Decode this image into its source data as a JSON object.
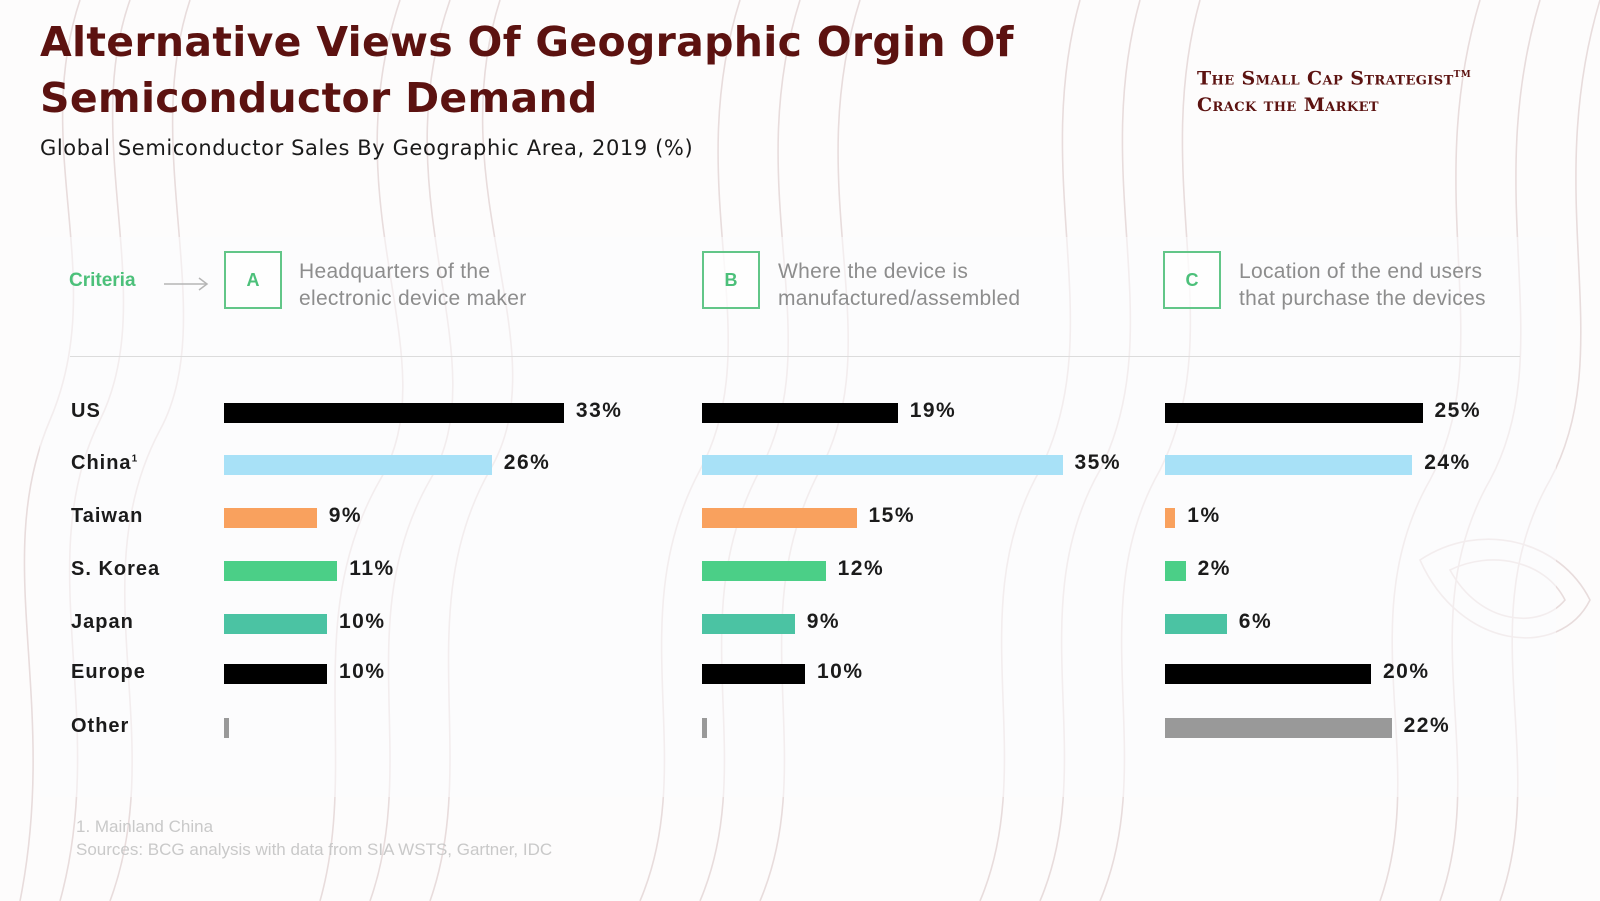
{
  "title_line1": "Alternative Views Of Geographic Orgin Of",
  "title_line2": "Semiconductor Demand",
  "subtitle": "Global Semiconductor Sales By Geographic Area, 2019 (%)",
  "brand": {
    "line1": "The Small Cap Strategist",
    "tm": "TM",
    "line2": "Crack the Market"
  },
  "criteria_label": "Criteria",
  "footnote": "1. Mainland China",
  "sources": "Sources: BCG analysis with data from SIA WSTS, Gartner, IDC",
  "chart_data": {
    "type": "bar",
    "orientation": "horizontal",
    "categories": [
      "US",
      "China",
      "Taiwan",
      "S. Korea",
      "Japan",
      "Europe",
      "Other"
    ],
    "category_footnotes": {
      "China": "1"
    },
    "unit": "%",
    "colors": [
      "#000000",
      "#a8e1f7",
      "#f9a15e",
      "#4bcf87",
      "#4bc3a3",
      "#000000",
      "#999999"
    ],
    "panels": [
      {
        "letter": "A",
        "criterion": "Headquarters of the\nelectronic device maker",
        "values": [
          33,
          26,
          9,
          11,
          10,
          10,
          0.5
        ],
        "labels": [
          "33%",
          "26%",
          "9%",
          "11%",
          "10%",
          "10%",
          ""
        ]
      },
      {
        "letter": "B",
        "criterion": "Where the device is\nmanufactured/assembled",
        "values": [
          19,
          35,
          15,
          12,
          9,
          10,
          0.5
        ],
        "labels": [
          "19%",
          "35%",
          "15%",
          "12%",
          "9%",
          "10%",
          ""
        ]
      },
      {
        "letter": "C",
        "criterion": "Location of the end users\nthat purchase the devices",
        "values": [
          25,
          24,
          1,
          2,
          6,
          20,
          22
        ],
        "labels": [
          "25%",
          "24%",
          "1%",
          "2%",
          "6%",
          "20%",
          "22%"
        ]
      }
    ]
  }
}
